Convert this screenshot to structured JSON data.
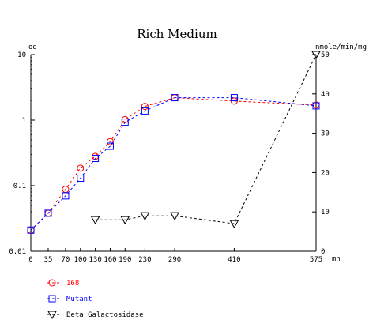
{
  "chart_data": {
    "type": "line",
    "title": "Rich Medium",
    "left_axis": {
      "label": "od",
      "scale": "log",
      "range": [
        0.01,
        10
      ],
      "ticks": [
        {
          "value": 0.01,
          "label": "0.01"
        },
        {
          "value": 0.1,
          "label": "0.1"
        },
        {
          "value": 1,
          "label": "1"
        },
        {
          "value": 10,
          "label": "10"
        }
      ]
    },
    "right_axis": {
      "label": "nmole/min/mg",
      "scale": "linear",
      "range": [
        0,
        50
      ],
      "ticks": [
        {
          "value": 0,
          "label": "0"
        },
        {
          "value": 10,
          "label": "10"
        },
        {
          "value": 20,
          "label": "20"
        },
        {
          "value": 30,
          "label": "30"
        },
        {
          "value": 40,
          "label": "40"
        },
        {
          "value": 50,
          "label": "50"
        }
      ]
    },
    "x_axis": {
      "unit": "mn",
      "range": [
        0,
        575
      ],
      "ticks": [
        {
          "value": 0,
          "label": "0"
        },
        {
          "value": 35,
          "label": "35"
        },
        {
          "value": 70,
          "label": "70"
        },
        {
          "value": 100,
          "label": "100"
        },
        {
          "value": 130,
          "label": "130"
        },
        {
          "value": 160,
          "label": "160"
        },
        {
          "value": 190,
          "label": "190"
        },
        {
          "value": 230,
          "label": "230"
        },
        {
          "value": 290,
          "label": "290"
        },
        {
          "value": 410,
          "label": "410"
        },
        {
          "value": 575,
          "label": "575"
        }
      ]
    },
    "grid": false,
    "legend_position": "bottom-left",
    "series": [
      {
        "name": "168",
        "axis": "left",
        "marker": "circle",
        "color": "#ff0000",
        "x": [
          0,
          35,
          70,
          100,
          130,
          160,
          190,
          230,
          290,
          410,
          575
        ],
        "y": [
          0.021,
          0.038,
          0.088,
          0.185,
          0.28,
          0.47,
          1.02,
          1.62,
          2.2,
          1.95,
          1.7
        ]
      },
      {
        "name": "Mutant",
        "axis": "left",
        "marker": "square",
        "color": "#0000ff",
        "x": [
          0,
          35,
          70,
          100,
          130,
          160,
          190,
          230,
          290,
          410,
          575
        ],
        "y": [
          0.021,
          0.038,
          0.07,
          0.13,
          0.26,
          0.4,
          0.93,
          1.38,
          2.2,
          2.2,
          1.65
        ]
      },
      {
        "name": "Beta Galactosidase",
        "axis": "right",
        "marker": "triangle-down",
        "color": "#000000",
        "x": [
          130,
          190,
          230,
          290,
          410,
          575
        ],
        "y": [
          8,
          8,
          9,
          9,
          7,
          50
        ]
      }
    ]
  }
}
